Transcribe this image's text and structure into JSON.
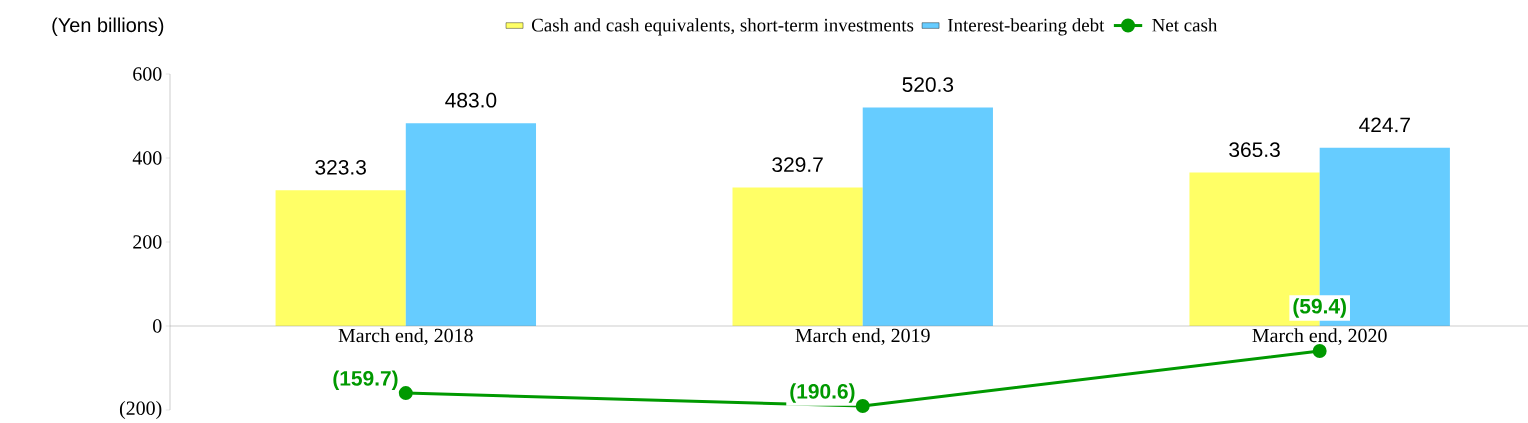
{
  "chart_data": {
    "type": "bar",
    "ylabel": "(Yen billions)",
    "categories": [
      "March end, 2018",
      "March end, 2019",
      "March end, 2020"
    ],
    "series": [
      {
        "name": "Cash and cash equivalents, short-term investments",
        "color": "#ffff66",
        "values": [
          323.3,
          329.7,
          365.3
        ],
        "value_labels": [
          "323.3",
          "329.7",
          "365.3"
        ]
      },
      {
        "name": "Interest-bearing debt",
        "color": "#66ccff",
        "values": [
          483.0,
          520.3,
          424.7
        ],
        "value_labels": [
          "483.0",
          "520.3",
          "424.7"
        ]
      },
      {
        "name": "Net cash",
        "type": "line",
        "color": "#009900",
        "marker": "circle",
        "values": [
          -159.7,
          -190.6,
          -59.4
        ],
        "value_labels": [
          "(159.7)",
          "(190.6)",
          "(59.4)"
        ]
      }
    ],
    "ylim": [
      -200,
      600
    ],
    "yticks": [
      {
        "value": -200,
        "label": "(200)"
      },
      0,
      200,
      400,
      600
    ],
    "legend": "top",
    "grid": false
  }
}
